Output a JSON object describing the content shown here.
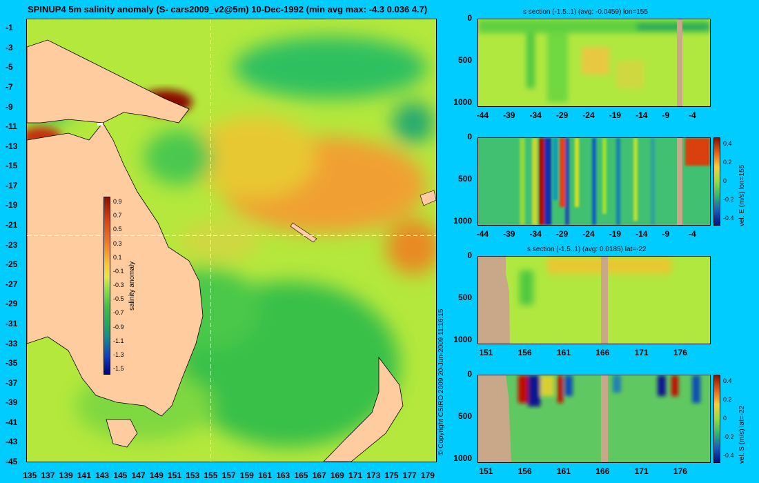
{
  "title": "SPINUP4 5m salinity anomaly  (S- cars2009_v2@5m) 10-Dec-1992 (min avg max: -4.3 0.036 4.7)",
  "copyright": "© Copyright CSIRO 2009   20-Jun-2009 11:16:15",
  "colors": {
    "background": "#00ccff",
    "land": "#c8a888",
    "sea_mid": "#9fe83a"
  },
  "chart_data": [
    {
      "type": "heatmap",
      "title": "SPINUP4 5m salinity anomaly  (S- cars2009_v2@5m) 10-Dec-1992 (min avg max: -4.3 0.036 4.7)",
      "x_ticks": [
        "135",
        "137",
        "139",
        "141",
        "143",
        "145",
        "147",
        "149",
        "151",
        "153",
        "155",
        "157",
        "159",
        "161",
        "163",
        "165",
        "167",
        "169",
        "171",
        "173",
        "175",
        "177",
        "179"
      ],
      "y_ticks": [
        "-1",
        "-3",
        "-5",
        "-7",
        "-9",
        "-11",
        "-13",
        "-15",
        "-17",
        "-19",
        "-21",
        "-23",
        "-25",
        "-27",
        "-29",
        "-31",
        "-33",
        "-35",
        "-37",
        "-39",
        "-41",
        "-43",
        "-45"
      ],
      "xlim": [
        134.6,
        180
      ],
      "ylim": [
        -45,
        0
      ],
      "colorbar": {
        "label": "salinity anomaly",
        "ticks": [
          "0.9",
          "0.7",
          "0.5",
          "0.3",
          "0.1",
          "-0.1",
          "-0.3",
          "-0.5",
          "-0.7",
          "-0.9",
          "-1.1",
          "-1.3",
          "-1.5"
        ]
      },
      "section_lines": {
        "lon": 155,
        "lat": -22
      }
    },
    {
      "type": "heatmap",
      "title": "s section (-1.5..1) (avg: -0.0459) lon=155",
      "x_ticks": [
        "-44",
        "-39",
        "-34",
        "-29",
        "-24",
        "-19",
        "-14",
        "-9",
        "-4"
      ],
      "y_ticks": [
        "0",
        "500",
        "1000"
      ],
      "xlim": [
        -45,
        -1
      ],
      "ylim": [
        1050,
        0
      ]
    },
    {
      "type": "heatmap",
      "title": "",
      "x_ticks": [
        "-44",
        "-39",
        "-34",
        "-29",
        "-24",
        "-19",
        "-14",
        "-9",
        "-4"
      ],
      "y_ticks": [
        "0",
        "500",
        "1000"
      ],
      "xlim": [
        -45,
        -1
      ],
      "ylim": [
        1050,
        0
      ],
      "colorbar": {
        "label": "vel. E (m/s) lon=155",
        "ticks": [
          "0.4",
          "0.2",
          "0",
          "-0.2",
          "-0.4"
        ]
      }
    },
    {
      "type": "heatmap",
      "title": "s section (-1.5..1) (avg: 0.0185) lat=-22",
      "x_ticks": [
        "151",
        "156",
        "161",
        "166",
        "171",
        "176"
      ],
      "y_ticks": [
        "0",
        "500",
        "1000"
      ],
      "xlim": [
        150,
        180
      ],
      "ylim": [
        1050,
        0
      ]
    },
    {
      "type": "heatmap",
      "title": "",
      "x_ticks": [
        "151",
        "156",
        "161",
        "166",
        "171",
        "176"
      ],
      "y_ticks": [
        "0",
        "500",
        "1000"
      ],
      "xlim": [
        150,
        180
      ],
      "ylim": [
        1050,
        0
      ],
      "colorbar": {
        "label": "vel. S (m/s) lat=-22",
        "ticks": [
          "0.4",
          "0.2",
          "0",
          "-0.2",
          "-0.4"
        ]
      }
    }
  ]
}
